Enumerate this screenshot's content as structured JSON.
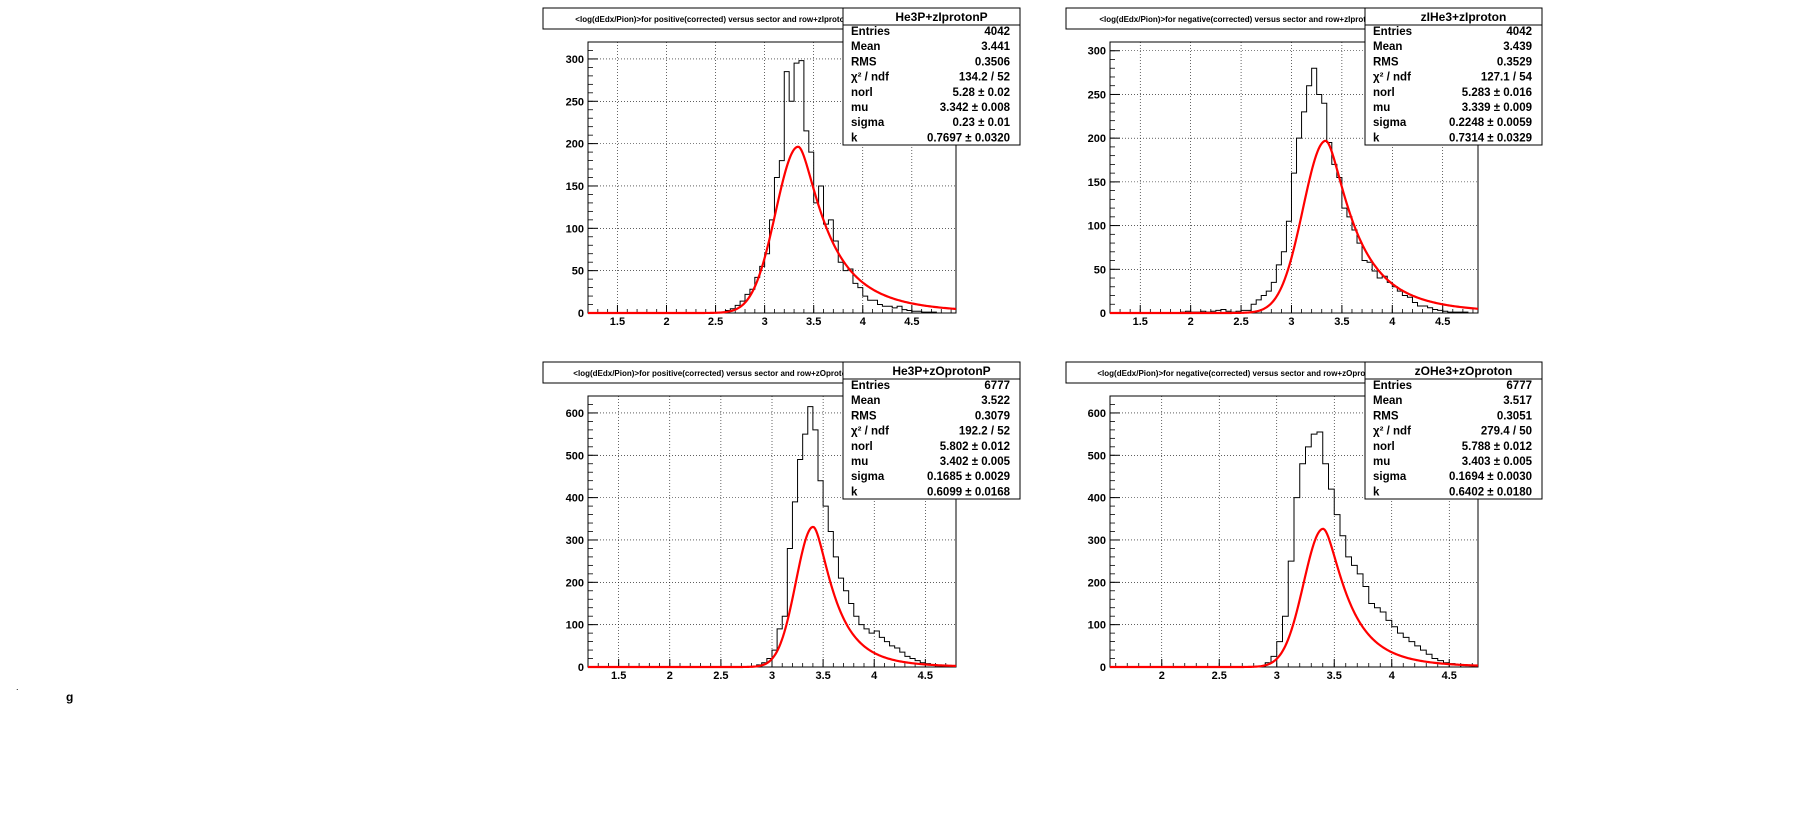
{
  "page": {
    "footer_marks": [
      ".",
      "g"
    ]
  },
  "chart_data": [
    {
      "type": "histogram",
      "title": "<log(dEdx/Pion)>for positive(corrected) versus sector and row+zIprotonP",
      "histogram_name": "He3P+zIprotonP",
      "xlim": [
        1.2,
        4.95
      ],
      "ylim": [
        0,
        320
      ],
      "xticks": [
        "1.5",
        "2",
        "2.5",
        "3",
        "3.5",
        "4",
        "4.5"
      ],
      "yticks": [
        "0",
        "50",
        "100",
        "150",
        "200",
        "250",
        "300"
      ],
      "grid": true,
      "fit": {
        "norm_log": 5.28,
        "mu": 3.342,
        "sigma": 0.23,
        "k": 0.7697
      },
      "stats": [
        {
          "label": "Entries",
          "value": "4042"
        },
        {
          "label": "Mean",
          "value": "3.441"
        },
        {
          "label": "RMS",
          "value": "0.3506"
        },
        {
          "label": "χ² / ndf",
          "value": "134.2 / 52"
        },
        {
          "label": "norl",
          "value": "5.28 ± 0.02"
        },
        {
          "label": "mu",
          "value": "3.342 ± 0.008"
        },
        {
          "label": "sigma",
          "value": "0.23 ± 0.01"
        },
        {
          "label": "k",
          "value": "0.7697 ± 0.0320"
        }
      ],
      "bins": {
        "edges": [
          2.6,
          2.65,
          2.7,
          2.75,
          2.8,
          2.85,
          2.9,
          2.95,
          3.0,
          3.05,
          3.1,
          3.15,
          3.2,
          3.25,
          3.3,
          3.35,
          3.4,
          3.45,
          3.5,
          3.55,
          3.6,
          3.65,
          3.7,
          3.75,
          3.8,
          3.85,
          3.9,
          3.95,
          4.0,
          4.05,
          4.1,
          4.15,
          4.2,
          4.25,
          4.3,
          4.35,
          4.4,
          4.45,
          4.5,
          4.55,
          4.6,
          4.65,
          4.7,
          4.75
        ],
        "counts": [
          3,
          5,
          9,
          14,
          22,
          28,
          42,
          55,
          70,
          110,
          160,
          180,
          285,
          250,
          295,
          298,
          215,
          190,
          130,
          150,
          105,
          110,
          85,
          60,
          50,
          52,
          35,
          30,
          20,
          15,
          15,
          10,
          8,
          8,
          6,
          8,
          4,
          3,
          2,
          2,
          1,
          1,
          1
        ]
      }
    },
    {
      "type": "histogram",
      "title": "<log(dEdx/Pion)>for negative(corrected) versus sector and row+zIproton",
      "histogram_name": "zIHe3+zIproton",
      "xlim": [
        1.2,
        4.85
      ],
      "ylim": [
        0,
        310
      ],
      "xticks": [
        "1.5",
        "2",
        "2.5",
        "3",
        "3.5",
        "4",
        "4.5"
      ],
      "yticks": [
        "0",
        "50",
        "100",
        "150",
        "200",
        "250",
        "300"
      ],
      "grid": true,
      "fit": {
        "norm_log": 5.283,
        "mu": 3.339,
        "sigma": 0.2248,
        "k": 0.7314
      },
      "stats": [
        {
          "label": "Entries",
          "value": "4042"
        },
        {
          "label": "Mean",
          "value": "3.439"
        },
        {
          "label": "RMS",
          "value": "0.3529"
        },
        {
          "label": "χ² / ndf",
          "value": "127.1 / 54"
        },
        {
          "label": "norl",
          "value": "5.283 ± 0.016"
        },
        {
          "label": "mu",
          "value": "3.339 ± 0.009"
        },
        {
          "label": "sigma",
          "value": "0.2248 ± 0.0059"
        },
        {
          "label": "k",
          "value": "0.7314 ± 0.0329"
        }
      ],
      "bins": {
        "edges": [
          1.9,
          1.95,
          2.0,
          2.05,
          2.1,
          2.15,
          2.2,
          2.25,
          2.3,
          2.35,
          2.4,
          2.45,
          2.5,
          2.55,
          2.6,
          2.65,
          2.7,
          2.75,
          2.8,
          2.85,
          2.9,
          2.95,
          3.0,
          3.05,
          3.1,
          3.15,
          3.2,
          3.25,
          3.3,
          3.35,
          3.4,
          3.45,
          3.5,
          3.55,
          3.6,
          3.65,
          3.7,
          3.75,
          3.8,
          3.85,
          3.9,
          3.95,
          4.0,
          4.05,
          4.1,
          4.15,
          4.2,
          4.25,
          4.3,
          4.35,
          4.4,
          4.45,
          4.5,
          4.55,
          4.6,
          4.65,
          4.7,
          4.75
        ],
        "counts": [
          1,
          2,
          1,
          1,
          2,
          1,
          2,
          3,
          4,
          2,
          1,
          2,
          3,
          3,
          10,
          15,
          20,
          25,
          35,
          55,
          70,
          105,
          160,
          200,
          230,
          260,
          280,
          250,
          240,
          195,
          170,
          155,
          120,
          110,
          95,
          80,
          60,
          58,
          48,
          40,
          42,
          35,
          30,
          25,
          20,
          18,
          12,
          8,
          8,
          6,
          4,
          3,
          2,
          1,
          1,
          1,
          1
        ]
      }
    },
    {
      "type": "histogram",
      "title": "<log(dEdx/Pion)>for positive(corrected) versus sector and row+zOprotonP",
      "histogram_name": "He3P+zOprotonP",
      "xlim": [
        1.2,
        4.8
      ],
      "ylim": [
        0,
        640
      ],
      "xticks": [
        "1.5",
        "2",
        "2.5",
        "3",
        "3.5",
        "4",
        "4.5"
      ],
      "yticks": [
        "0",
        "100",
        "200",
        "300",
        "400",
        "500",
        "600"
      ],
      "grid": true,
      "fit": {
        "norm_log": 5.802,
        "mu": 3.402,
        "sigma": 0.1685,
        "k": 0.6099
      },
      "stats": [
        {
          "label": "Entries",
          "value": "6777"
        },
        {
          "label": "Mean",
          "value": "3.522"
        },
        {
          "label": "RMS",
          "value": "0.3079"
        },
        {
          "label": "χ² / ndf",
          "value": "192.2 / 52"
        },
        {
          "label": "norl",
          "value": "5.802 ± 0.012"
        },
        {
          "label": "mu",
          "value": "3.402 ± 0.005"
        },
        {
          "label": "sigma",
          "value": "0.1685 ± 0.0029"
        },
        {
          "label": "k",
          "value": "0.6099 ± 0.0168"
        }
      ],
      "bins": {
        "edges": [
          2.85,
          2.9,
          2.95,
          3.0,
          3.05,
          3.1,
          3.15,
          3.2,
          3.25,
          3.3,
          3.35,
          3.4,
          3.45,
          3.5,
          3.55,
          3.6,
          3.65,
          3.7,
          3.75,
          3.8,
          3.85,
          3.9,
          3.95,
          4.0,
          4.05,
          4.1,
          4.15,
          4.2,
          4.25,
          4.3,
          4.35,
          4.4,
          4.45,
          4.5,
          4.55,
          4.6,
          4.65,
          4.7
        ],
        "counts": [
          5,
          10,
          20,
          40,
          90,
          120,
          280,
          390,
          490,
          550,
          615,
          560,
          440,
          380,
          320,
          260,
          210,
          180,
          150,
          120,
          100,
          90,
          80,
          85,
          70,
          60,
          50,
          45,
          35,
          25,
          20,
          15,
          10,
          8,
          5,
          3,
          2
        ]
      }
    },
    {
      "type": "histogram",
      "title": "<log(dEdx/Pion)>for negative(corrected) versus sector and row+zOproton",
      "histogram_name": "zOHe3+zOproton",
      "xlim": [
        1.55,
        4.75
      ],
      "ylim": [
        0,
        640
      ],
      "xticks": [
        "2",
        "2.5",
        "3",
        "3.5",
        "4",
        "4.5"
      ],
      "yticks": [
        "0",
        "100",
        "200",
        "300",
        "400",
        "500",
        "600"
      ],
      "grid": true,
      "fit": {
        "norm_log": 5.788,
        "mu": 3.403,
        "sigma": 0.1694,
        "k": 0.6402
      },
      "stats": [
        {
          "label": "Entries",
          "value": "6777"
        },
        {
          "label": "Mean",
          "value": "3.517"
        },
        {
          "label": "RMS",
          "value": "0.3051"
        },
        {
          "label": "χ² / ndf",
          "value": "279.4 / 50"
        },
        {
          "label": "norl",
          "value": "5.788 ± 0.012"
        },
        {
          "label": "mu",
          "value": "3.403 ± 0.005"
        },
        {
          "label": "sigma",
          "value": "0.1694 ± 0.0030"
        },
        {
          "label": "k",
          "value": "0.6402 ± 0.0180"
        }
      ],
      "bins": {
        "edges": [
          2.9,
          2.95,
          3.0,
          3.05,
          3.1,
          3.15,
          3.2,
          3.25,
          3.3,
          3.35,
          3.4,
          3.45,
          3.5,
          3.55,
          3.6,
          3.65,
          3.7,
          3.75,
          3.8,
          3.85,
          3.9,
          3.95,
          4.0,
          4.05,
          4.1,
          4.15,
          4.2,
          4.25,
          4.3,
          4.35,
          4.4,
          4.45,
          4.5,
          4.55,
          4.6
        ],
        "counts": [
          10,
          25,
          60,
          120,
          250,
          400,
          480,
          520,
          550,
          555,
          480,
          420,
          360,
          310,
          260,
          240,
          220,
          190,
          150,
          140,
          130,
          110,
          95,
          80,
          70,
          60,
          50,
          40,
          30,
          20,
          15,
          10,
          8,
          5
        ]
      }
    }
  ]
}
